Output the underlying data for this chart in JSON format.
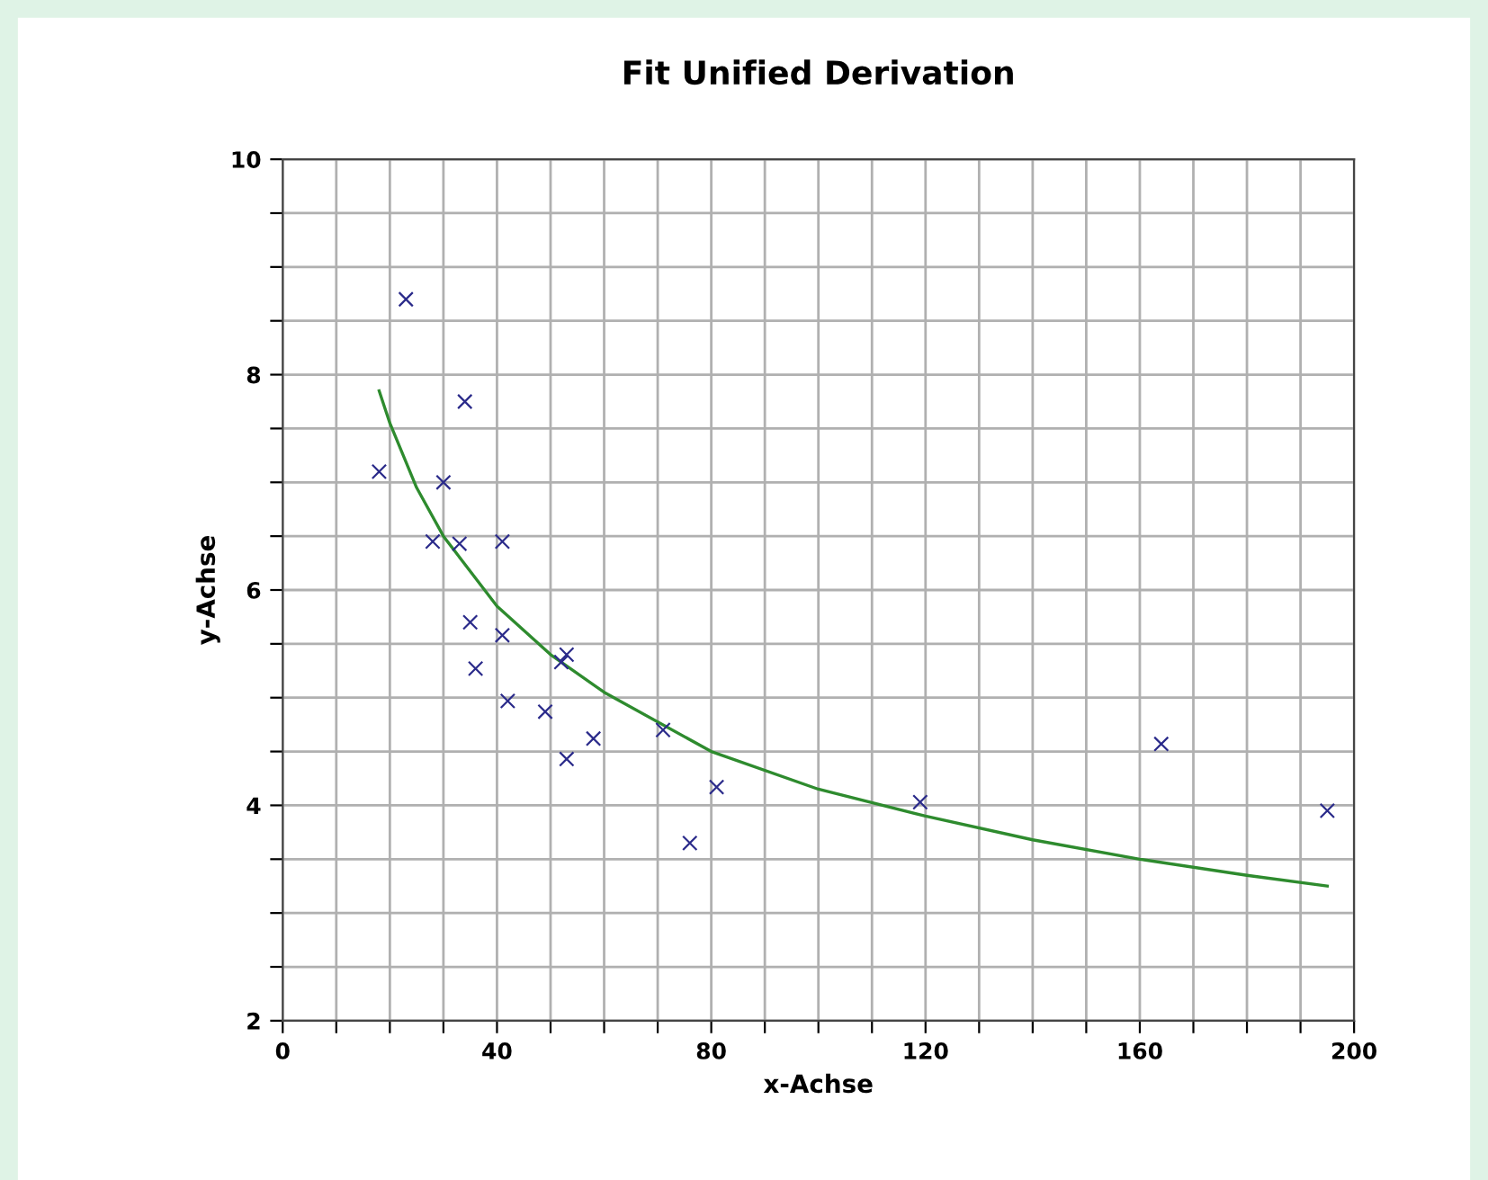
{
  "chart_data": {
    "type": "scatter",
    "title": "Fit Unified Derivation",
    "xlabel": "x-Achse",
    "ylabel": "y-Achse",
    "xlim": [
      0,
      200
    ],
    "ylim": [
      2,
      10
    ],
    "xticks": [
      0,
      {
        "value": 10,
        "label": null
      },
      {
        "value": 20,
        "label": null
      },
      {
        "value": 30,
        "label": null
      },
      40,
      {
        "value": 50,
        "label": null
      },
      {
        "value": 60,
        "label": null
      },
      {
        "value": 70,
        "label": null
      },
      80,
      {
        "value": 90,
        "label": null
      },
      {
        "value": 100,
        "label": null
      },
      {
        "value": 110,
        "label": null
      },
      120,
      {
        "value": 130,
        "label": null
      },
      {
        "value": 140,
        "label": null
      },
      {
        "value": 150,
        "label": null
      },
      160,
      {
        "value": 170,
        "label": null
      },
      {
        "value": 180,
        "label": null
      },
      {
        "value": 190,
        "label": null
      },
      200
    ],
    "yticks": [
      2,
      {
        "value": 2.5,
        "label": null
      },
      {
        "value": 3,
        "label": null
      },
      {
        "value": 3.5,
        "label": null
      },
      4,
      {
        "value": 4.5,
        "label": null
      },
      {
        "value": 5,
        "label": null
      },
      {
        "value": 5.5,
        "label": null
      },
      6,
      {
        "value": 6.5,
        "label": null
      },
      {
        "value": 7,
        "label": null
      },
      {
        "value": 7.5,
        "label": null
      },
      8,
      {
        "value": 8.5,
        "label": null
      },
      {
        "value": 9,
        "label": null
      },
      {
        "value": 9.5,
        "label": null
      },
      10
    ],
    "grid": true,
    "series": [
      {
        "marker": "cross",
        "color": "#2a2a8a",
        "x": [
          18,
          23,
          28,
          30,
          33,
          34,
          35,
          36,
          41,
          41,
          42,
          49,
          52,
          53,
          53,
          58,
          71,
          76,
          81,
          119,
          164,
          195
        ],
        "values": [
          7.1,
          8.7,
          6.45,
          7.0,
          6.43,
          7.75,
          5.7,
          5.27,
          6.45,
          5.58,
          4.97,
          4.87,
          5.33,
          5.4,
          4.43,
          4.62,
          4.7,
          3.65,
          4.17,
          4.03,
          4.57,
          3.95
        ]
      },
      {
        "type": "line",
        "marker": "none",
        "line_style": "solid",
        "color": "#2e8b2e",
        "x": [
          18,
          20,
          25,
          30,
          40,
          50,
          60,
          80,
          100,
          120,
          140,
          160,
          180,
          195
        ],
        "values": [
          7.85,
          7.55,
          6.95,
          6.5,
          5.85,
          5.4,
          5.05,
          4.5,
          4.15,
          3.9,
          3.68,
          3.5,
          3.35,
          3.25
        ]
      }
    ]
  }
}
